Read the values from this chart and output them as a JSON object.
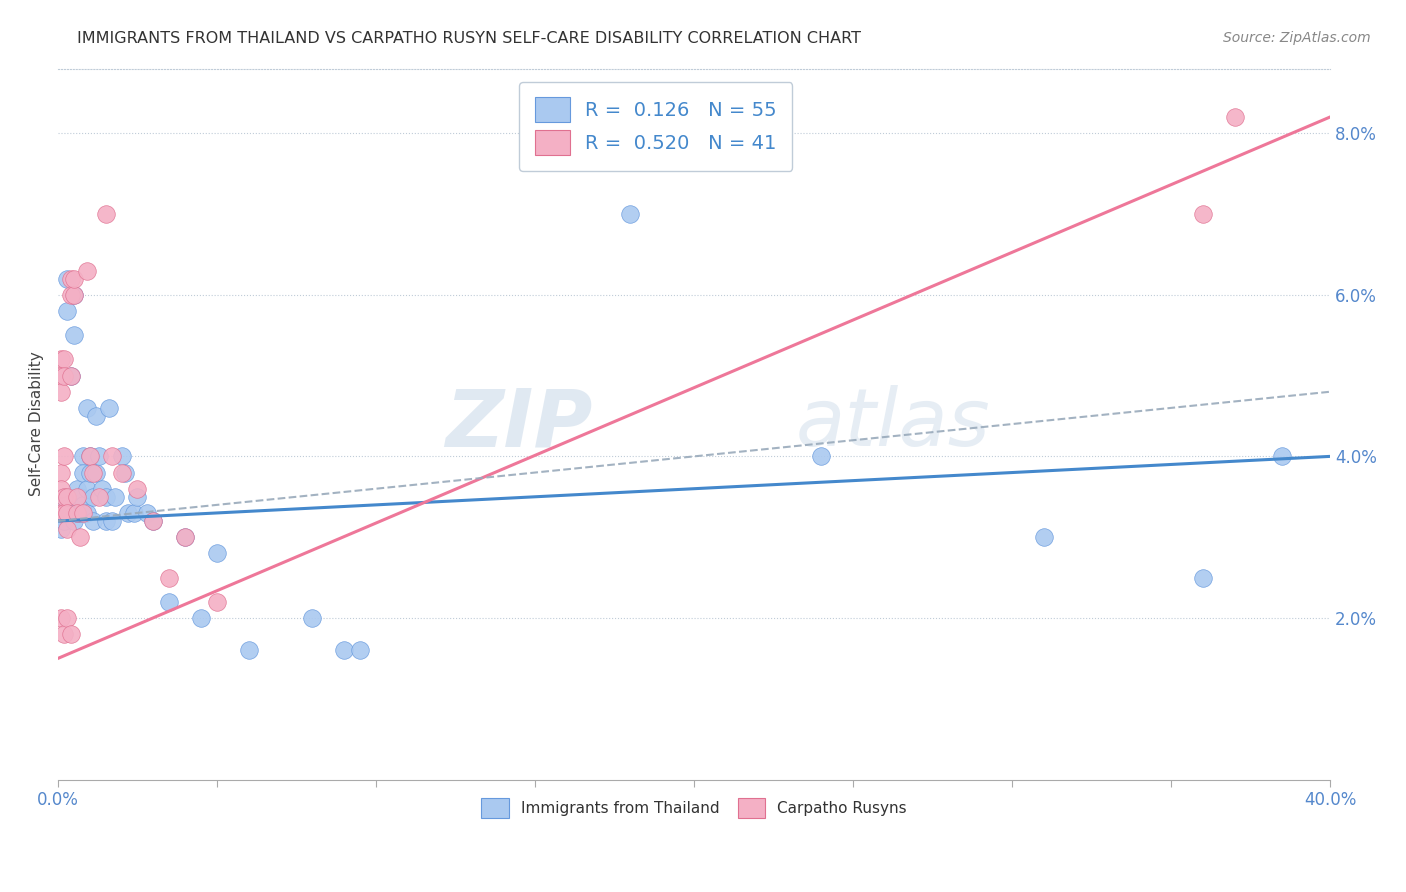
{
  "title": "IMMIGRANTS FROM THAILAND VS CARPATHO RUSYN SELF-CARE DISABILITY CORRELATION CHART",
  "source": "Source: ZipAtlas.com",
  "ylabel": "Self-Care Disability",
  "right_yticks": [
    "2.0%",
    "4.0%",
    "6.0%",
    "8.0%"
  ],
  "right_ytick_vals": [
    0.02,
    0.04,
    0.06,
    0.08
  ],
  "legend_label1": "Immigrants from Thailand",
  "legend_label2": "Carpatho Rusyns",
  "R1": "0.126",
  "N1": "55",
  "R2": "0.520",
  "N2": "41",
  "color_blue": "#aac9f0",
  "color_pink": "#f4b0c5",
  "color_blue_edge": "#6699dd",
  "color_pink_edge": "#e07090",
  "color_blue_line": "#4488cc",
  "color_pink_line": "#ee7799",
  "color_dashed": "#99aabb",
  "watermark_zip": "ZIP",
  "watermark_atlas": "atlas",
  "xmin": 0.0,
  "xmax": 0.4,
  "ymin": 0.0,
  "ymax": 0.088,
  "blue_line_x0": 0.0,
  "blue_line_y0": 0.032,
  "blue_line_x1": 0.4,
  "blue_line_y1": 0.04,
  "pink_line_x0": 0.0,
  "pink_line_y0": 0.015,
  "pink_line_x1": 0.4,
  "pink_line_y1": 0.082,
  "dash_line_x0": 0.0,
  "dash_line_y0": 0.032,
  "dash_line_x1": 0.4,
  "dash_line_y1": 0.048,
  "blue_scatter_x": [
    0.001,
    0.001,
    0.002,
    0.002,
    0.003,
    0.003,
    0.003,
    0.004,
    0.004,
    0.005,
    0.005,
    0.005,
    0.006,
    0.006,
    0.007,
    0.007,
    0.008,
    0.008,
    0.008,
    0.009,
    0.009,
    0.009,
    0.01,
    0.01,
    0.011,
    0.011,
    0.012,
    0.012,
    0.013,
    0.014,
    0.015,
    0.015,
    0.016,
    0.017,
    0.018,
    0.02,
    0.021,
    0.022,
    0.024,
    0.025,
    0.028,
    0.03,
    0.035,
    0.04,
    0.045,
    0.05,
    0.06,
    0.08,
    0.09,
    0.095,
    0.18,
    0.24,
    0.31,
    0.36,
    0.385
  ],
  "blue_scatter_y": [
    0.033,
    0.031,
    0.035,
    0.032,
    0.062,
    0.058,
    0.035,
    0.05,
    0.033,
    0.06,
    0.055,
    0.032,
    0.036,
    0.033,
    0.035,
    0.033,
    0.04,
    0.038,
    0.034,
    0.046,
    0.036,
    0.033,
    0.04,
    0.038,
    0.035,
    0.032,
    0.045,
    0.038,
    0.04,
    0.036,
    0.035,
    0.032,
    0.046,
    0.032,
    0.035,
    0.04,
    0.038,
    0.033,
    0.033,
    0.035,
    0.033,
    0.032,
    0.022,
    0.03,
    0.02,
    0.028,
    0.016,
    0.02,
    0.016,
    0.016,
    0.07,
    0.04,
    0.03,
    0.025,
    0.04
  ],
  "pink_scatter_x": [
    0.001,
    0.001,
    0.001,
    0.001,
    0.001,
    0.001,
    0.001,
    0.002,
    0.002,
    0.002,
    0.002,
    0.002,
    0.002,
    0.003,
    0.003,
    0.003,
    0.003,
    0.004,
    0.004,
    0.004,
    0.004,
    0.005,
    0.005,
    0.006,
    0.006,
    0.007,
    0.008,
    0.009,
    0.01,
    0.011,
    0.013,
    0.015,
    0.017,
    0.02,
    0.025,
    0.03,
    0.035,
    0.04,
    0.05,
    0.36,
    0.37
  ],
  "pink_scatter_y": [
    0.052,
    0.05,
    0.048,
    0.038,
    0.036,
    0.033,
    0.02,
    0.052,
    0.05,
    0.04,
    0.035,
    0.033,
    0.018,
    0.035,
    0.033,
    0.031,
    0.02,
    0.062,
    0.06,
    0.05,
    0.018,
    0.06,
    0.062,
    0.035,
    0.033,
    0.03,
    0.033,
    0.063,
    0.04,
    0.038,
    0.035,
    0.07,
    0.04,
    0.038,
    0.036,
    0.032,
    0.025,
    0.03,
    0.022,
    0.07,
    0.082
  ]
}
